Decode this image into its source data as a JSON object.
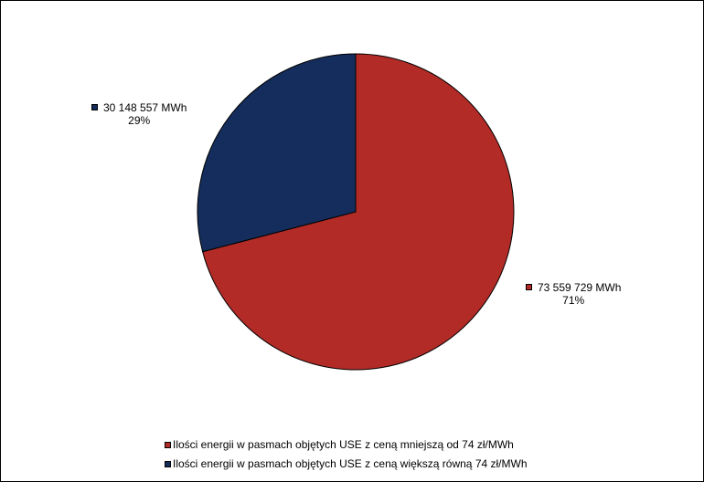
{
  "chart_data": {
    "type": "pie",
    "title": "",
    "slices": [
      {
        "label": "Ilości energii w pasmach objętych USE z ceną mniejszą od 74 zł/MWh",
        "value": 73559729,
        "value_label": "73 559 729 MWh",
        "percent_label": "71%",
        "color": "#B22B27"
      },
      {
        "label": "Ilości energii w pasmach objętych USE z ceną większą równą 74 zł/MWh",
        "value": 30148557,
        "value_label": "30 148 557 MWh",
        "percent_label": "29%",
        "color": "#142D5C"
      }
    ],
    "start_angle": "top (12 o'clock), clockwise",
    "legend_position": "bottom"
  }
}
